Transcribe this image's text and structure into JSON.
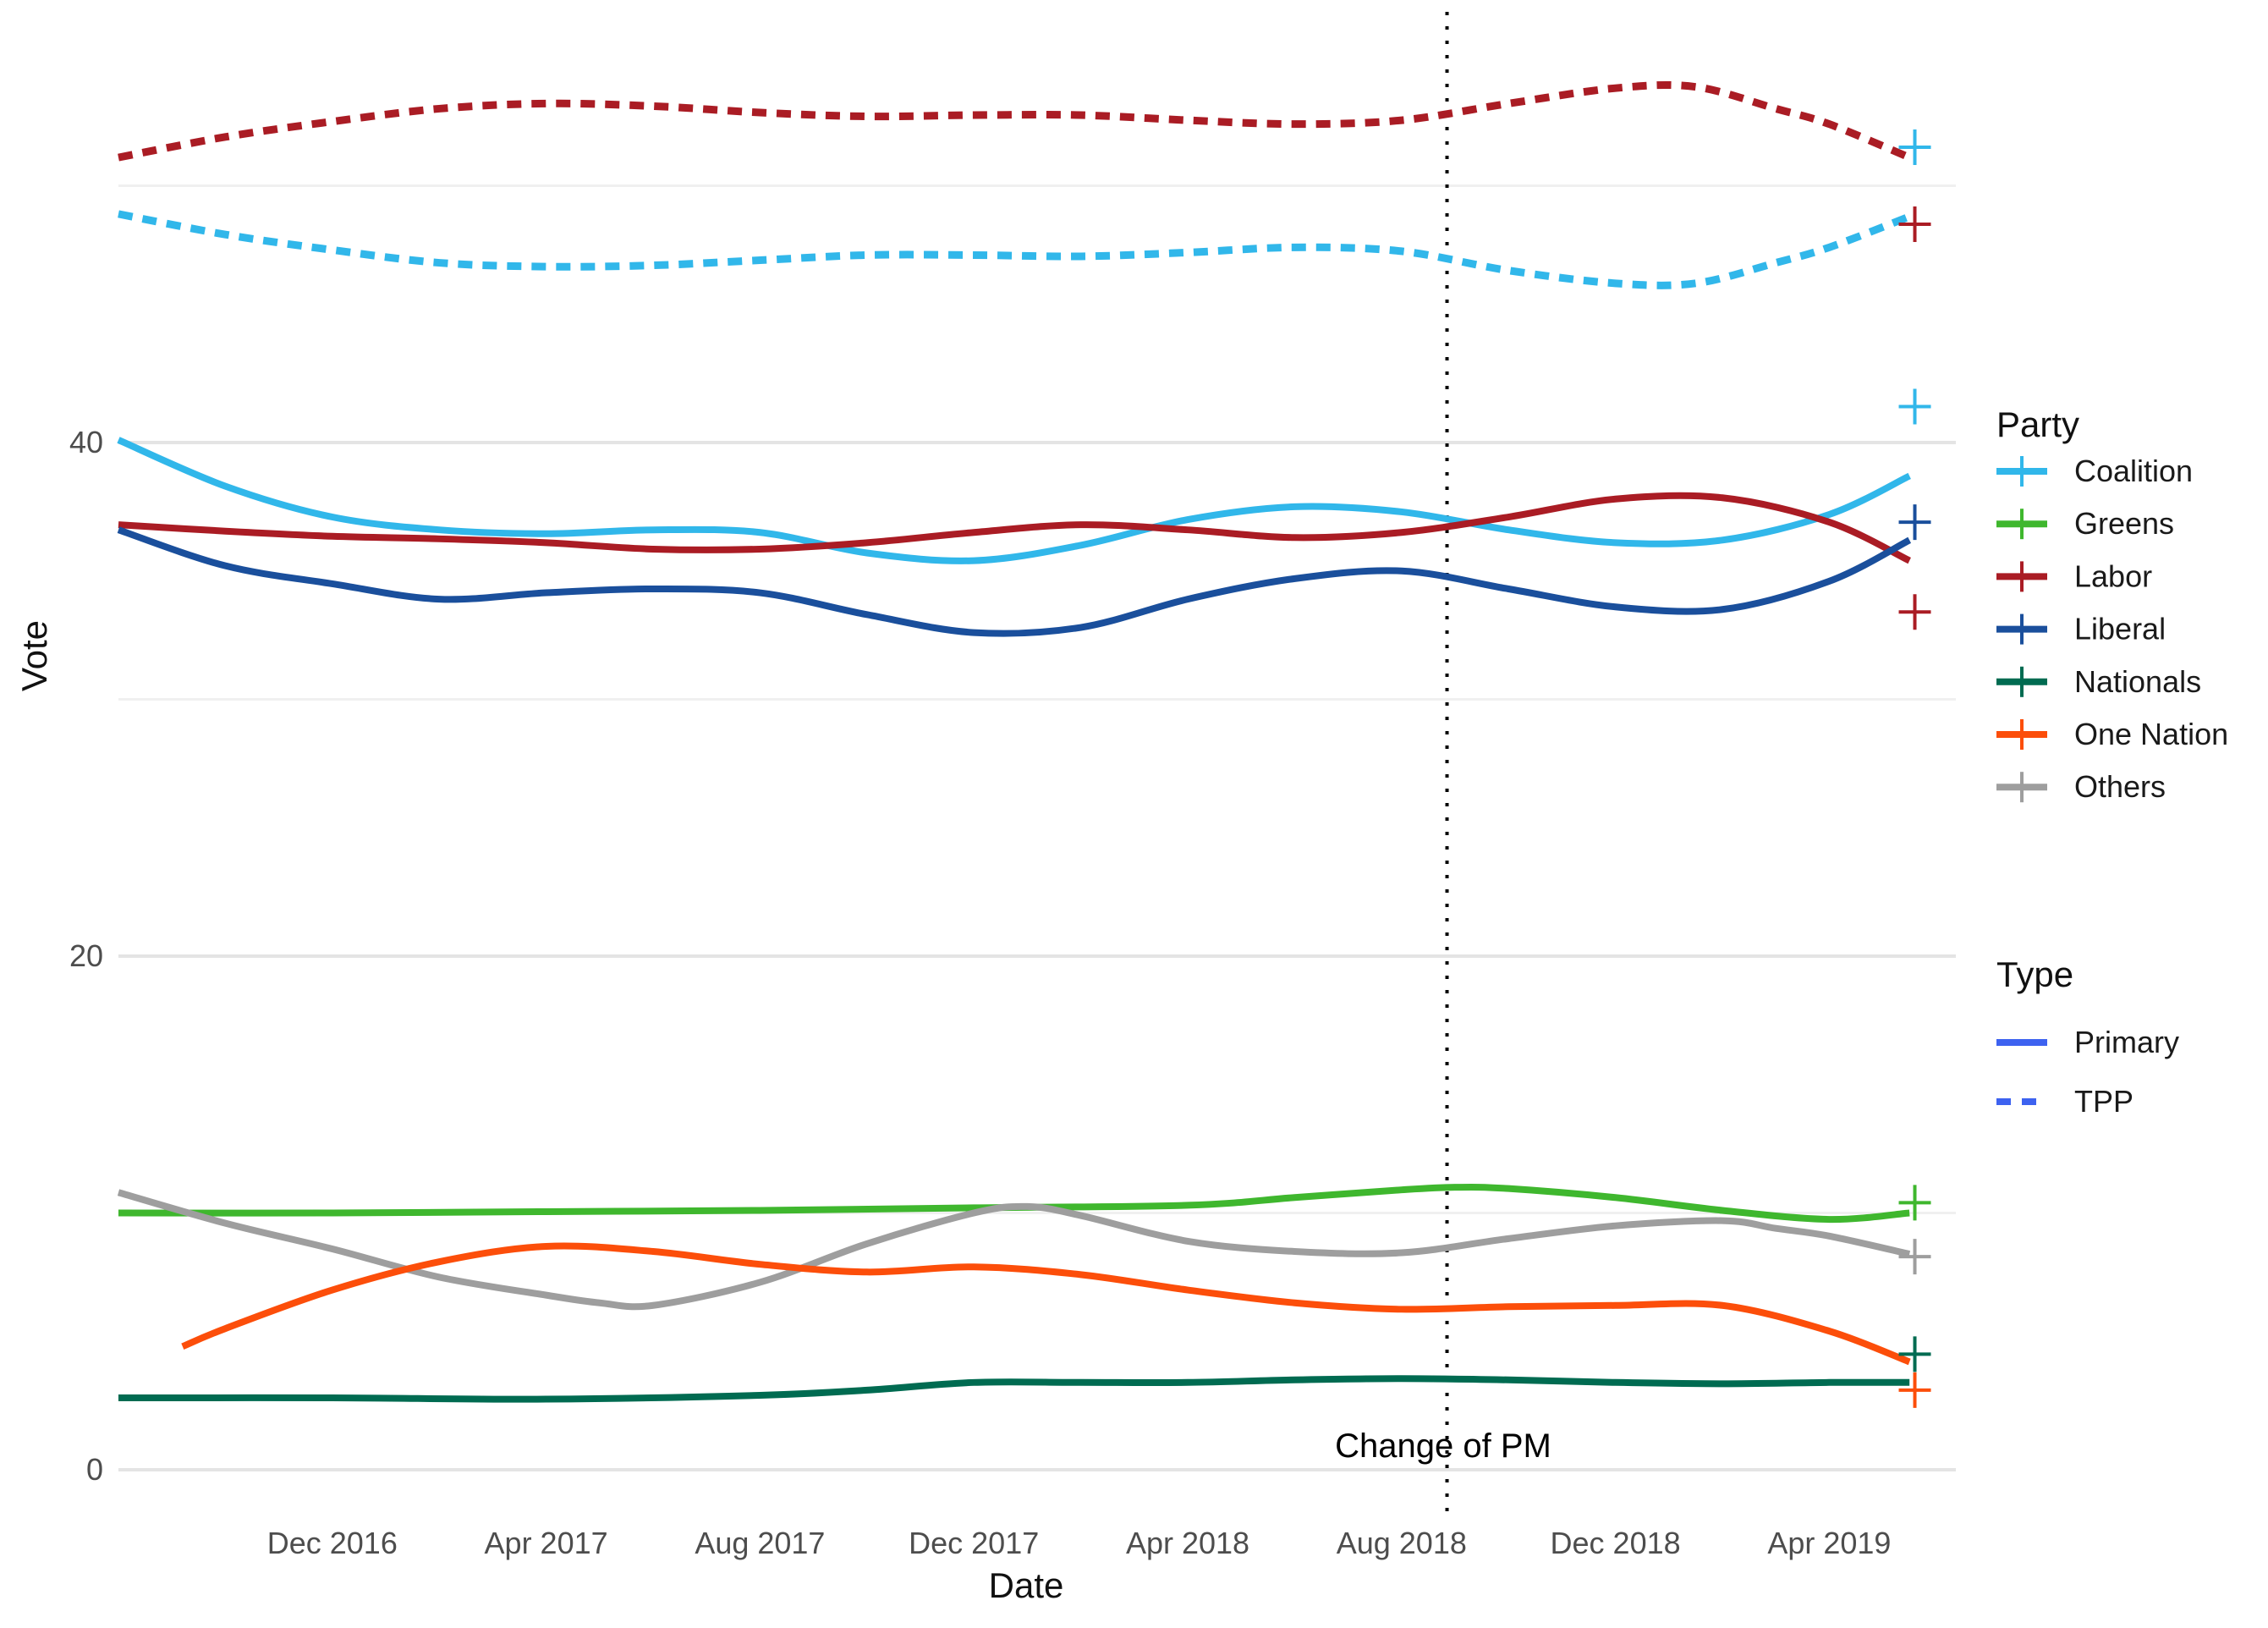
{
  "annotation": {
    "label": "Change of PM",
    "t": 24.85
  },
  "legend": {
    "party": {
      "title": "Party",
      "items": [
        {
          "label": "Coalition",
          "color": "#31B7EA"
        },
        {
          "label": "Greens",
          "color": "#3FB72E"
        },
        {
          "label": "Labor",
          "color": "#AA1C24"
        },
        {
          "label": "Liberal",
          "color": "#1A4F9C"
        },
        {
          "label": "Nationals",
          "color": "#006B51"
        },
        {
          "label": "One Nation",
          "color": "#FC4E0A"
        },
        {
          "label": "Others",
          "color": "#9E9E9E"
        }
      ]
    },
    "type": {
      "title": "Type",
      "color": "#3D62F0",
      "items": [
        {
          "label": "Primary",
          "dash": "solid"
        },
        {
          "label": "TPP",
          "dash": "dashed"
        }
      ]
    }
  },
  "chart_data": {
    "type": "line",
    "title": "",
    "xlabel": "Date",
    "ylabel": "Vote",
    "x_unit": "months since Aug 2016",
    "x_range": [
      0,
      33.6
    ],
    "ylim": [
      -2,
      57
    ],
    "grid": "horizontal-only",
    "y_ticks": [
      {
        "label": "0",
        "v": 0
      },
      {
        "label": "20",
        "v": 20
      },
      {
        "label": "40",
        "v": 40
      }
    ],
    "y_minor": [
      10,
      30,
      50
    ],
    "x_ticks": [
      {
        "label": "Dec 2016",
        "t": 4
      },
      {
        "label": "Apr 2017",
        "t": 8
      },
      {
        "label": "Aug 2017",
        "t": 12
      },
      {
        "label": "Dec 2017",
        "t": 16
      },
      {
        "label": "Apr 2018",
        "t": 20
      },
      {
        "label": "Aug 2018",
        "t": 24
      },
      {
        "label": "Dec 2018",
        "t": 28
      },
      {
        "label": "Apr 2019",
        "t": 32
      }
    ],
    "series": [
      {
        "party": "Labor",
        "vote_type": "TPP",
        "color": "#AA1C24",
        "dashed": true,
        "points": [
          [
            0,
            51.1
          ],
          [
            2,
            51.9
          ],
          [
            4,
            52.5
          ],
          [
            6,
            53.0
          ],
          [
            8,
            53.2
          ],
          [
            10,
            53.1
          ],
          [
            12,
            52.85
          ],
          [
            14,
            52.7
          ],
          [
            16,
            52.75
          ],
          [
            18,
            52.75
          ],
          [
            20,
            52.55
          ],
          [
            22,
            52.4
          ],
          [
            24,
            52.55
          ],
          [
            26,
            53.2
          ],
          [
            28,
            53.8
          ],
          [
            29.5,
            53.85
          ],
          [
            31,
            53.0
          ],
          [
            32,
            52.4
          ],
          [
            33.5,
            51.1
          ]
        ]
      },
      {
        "party": "Coalition",
        "vote_type": "TPP",
        "color": "#31B7EA",
        "dashed": true,
        "points": [
          [
            0,
            48.9
          ],
          [
            2,
            48.1
          ],
          [
            4,
            47.5
          ],
          [
            6,
            47.0
          ],
          [
            8,
            46.85
          ],
          [
            10,
            46.9
          ],
          [
            12,
            47.1
          ],
          [
            14,
            47.3
          ],
          [
            16,
            47.3
          ],
          [
            18,
            47.25
          ],
          [
            20,
            47.4
          ],
          [
            22,
            47.6
          ],
          [
            24,
            47.45
          ],
          [
            26,
            46.7
          ],
          [
            28,
            46.2
          ],
          [
            29.5,
            46.2
          ],
          [
            31,
            47.0
          ],
          [
            32,
            47.6
          ],
          [
            33.5,
            48.8
          ]
        ]
      },
      {
        "party": "Coalition",
        "vote_type": "Primary",
        "color": "#31B7EA",
        "dashed": false,
        "points": [
          [
            0,
            40.1
          ],
          [
            2,
            38.3
          ],
          [
            4,
            37.1
          ],
          [
            6,
            36.6
          ],
          [
            8,
            36.45
          ],
          [
            10,
            36.6
          ],
          [
            12,
            36.5
          ],
          [
            14,
            35.7
          ],
          [
            16,
            35.4
          ],
          [
            18,
            36.0
          ],
          [
            20,
            37.0
          ],
          [
            22,
            37.5
          ],
          [
            24,
            37.3
          ],
          [
            26,
            36.6
          ],
          [
            28,
            36.1
          ],
          [
            30,
            36.2
          ],
          [
            32,
            37.2
          ],
          [
            33.5,
            38.7
          ]
        ]
      },
      {
        "party": "Labor",
        "vote_type": "Primary",
        "color": "#AA1C24",
        "dashed": false,
        "points": [
          [
            0,
            36.8
          ],
          [
            2,
            36.55
          ],
          [
            4,
            36.35
          ],
          [
            6,
            36.25
          ],
          [
            8,
            36.1
          ],
          [
            10,
            35.85
          ],
          [
            12,
            35.85
          ],
          [
            14,
            36.1
          ],
          [
            16,
            36.5
          ],
          [
            18,
            36.8
          ],
          [
            20,
            36.6
          ],
          [
            22,
            36.3
          ],
          [
            24,
            36.5
          ],
          [
            26,
            37.1
          ],
          [
            28,
            37.8
          ],
          [
            30,
            37.85
          ],
          [
            32,
            36.9
          ],
          [
            33.5,
            35.4
          ]
        ]
      },
      {
        "party": "Liberal",
        "vote_type": "Primary",
        "color": "#1A4F9C",
        "dashed": false,
        "points": [
          [
            0,
            36.6
          ],
          [
            2,
            35.2
          ],
          [
            4,
            34.5
          ],
          [
            6,
            33.9
          ],
          [
            8,
            34.15
          ],
          [
            10,
            34.3
          ],
          [
            12,
            34.15
          ],
          [
            14,
            33.3
          ],
          [
            16,
            32.6
          ],
          [
            18,
            32.8
          ],
          [
            20,
            33.9
          ],
          [
            22,
            34.7
          ],
          [
            24,
            35.0
          ],
          [
            26,
            34.3
          ],
          [
            28,
            33.6
          ],
          [
            30,
            33.5
          ],
          [
            32,
            34.6
          ],
          [
            33.5,
            36.2
          ]
        ]
      },
      {
        "party": "Greens",
        "vote_type": "Primary",
        "color": "#3FB72E",
        "dashed": false,
        "points": [
          [
            0,
            10.0
          ],
          [
            4,
            10.0
          ],
          [
            8,
            10.05
          ],
          [
            12,
            10.1
          ],
          [
            16,
            10.2
          ],
          [
            20,
            10.3
          ],
          [
            22,
            10.6
          ],
          [
            24,
            10.9
          ],
          [
            25,
            11.0
          ],
          [
            26,
            10.95
          ],
          [
            28,
            10.6
          ],
          [
            30,
            10.1
          ],
          [
            32,
            9.75
          ],
          [
            33.5,
            10.0
          ]
        ]
      },
      {
        "party": "Others",
        "vote_type": "Primary",
        "color": "#9E9E9E",
        "dashed": false,
        "points": [
          [
            0,
            10.8
          ],
          [
            2,
            9.6
          ],
          [
            4,
            8.6
          ],
          [
            6,
            7.5
          ],
          [
            8,
            6.8
          ],
          [
            9,
            6.5
          ],
          [
            10,
            6.4
          ],
          [
            12,
            7.3
          ],
          [
            14,
            8.8
          ],
          [
            16,
            10.0
          ],
          [
            17,
            10.25
          ],
          [
            18,
            9.9
          ],
          [
            20,
            8.9
          ],
          [
            22,
            8.5
          ],
          [
            24,
            8.45
          ],
          [
            26,
            9.0
          ],
          [
            28,
            9.5
          ],
          [
            30,
            9.7
          ],
          [
            31,
            9.4
          ],
          [
            32,
            9.1
          ],
          [
            33.5,
            8.4
          ]
        ]
      },
      {
        "party": "One Nation",
        "vote_type": "Primary",
        "color": "#FC4E0A",
        "dashed": false,
        "points": [
          [
            1.2,
            4.8
          ],
          [
            2,
            5.5
          ],
          [
            4,
            7.0
          ],
          [
            6,
            8.1
          ],
          [
            8,
            8.7
          ],
          [
            10,
            8.5
          ],
          [
            12,
            8.0
          ],
          [
            14,
            7.7
          ],
          [
            16,
            7.9
          ],
          [
            18,
            7.6
          ],
          [
            20,
            7.0
          ],
          [
            22,
            6.5
          ],
          [
            24,
            6.25
          ],
          [
            26,
            6.35
          ],
          [
            28,
            6.4
          ],
          [
            30,
            6.4
          ],
          [
            32,
            5.4
          ],
          [
            33.5,
            4.2
          ]
        ]
      },
      {
        "party": "Nationals",
        "vote_type": "Primary",
        "color": "#006B51",
        "dashed": false,
        "points": [
          [
            0,
            2.8
          ],
          [
            4,
            2.8
          ],
          [
            8,
            2.75
          ],
          [
            12,
            2.9
          ],
          [
            14,
            3.1
          ],
          [
            16,
            3.4
          ],
          [
            18,
            3.4
          ],
          [
            20,
            3.4
          ],
          [
            22,
            3.5
          ],
          [
            24,
            3.55
          ],
          [
            26,
            3.5
          ],
          [
            28,
            3.4
          ],
          [
            30,
            3.35
          ],
          [
            32,
            3.4
          ],
          [
            33.5,
            3.4
          ]
        ]
      }
    ],
    "election_results": {
      "t": 33.6,
      "markers": [
        {
          "party": "Coalition",
          "vote_type": "TPP",
          "value": 51.5
        },
        {
          "party": "Labor",
          "vote_type": "TPP",
          "value": 48.5
        },
        {
          "party": "Coalition",
          "vote_type": "Primary",
          "value": 41.4
        },
        {
          "party": "Liberal",
          "vote_type": "Primary",
          "value": 36.9
        },
        {
          "party": "Labor",
          "vote_type": "Primary",
          "value": 33.4
        },
        {
          "party": "Greens",
          "vote_type": "Primary",
          "value": 10.4
        },
        {
          "party": "Others",
          "vote_type": "Primary",
          "value": 8.3
        },
        {
          "party": "Nationals",
          "vote_type": "Primary",
          "value": 4.5
        },
        {
          "party": "One Nation",
          "vote_type": "Primary",
          "value": 3.1
        }
      ]
    }
  }
}
